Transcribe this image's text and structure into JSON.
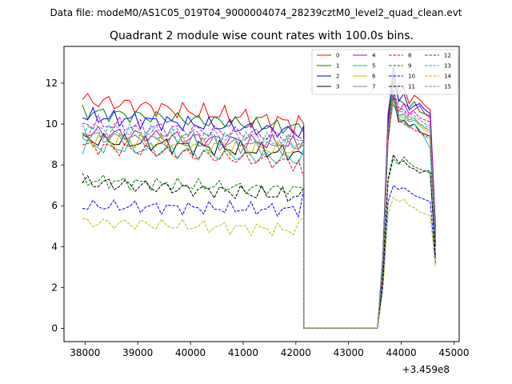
{
  "chart_data": {
    "type": "line",
    "suptitle": "Data file: modeM0/AS1C05_019T04_9000004074_28239cztM0_level2_quad_clean.evt",
    "title": "Quadrant 2 module wise count rates with 100.0s bins.",
    "xlabel": "",
    "ylabel": "",
    "x_offset_label": "+3.459e8",
    "xlim": [
      37600,
      45100
    ],
    "ylim": [
      -0.65,
      13.8
    ],
    "x_ticks": [
      38000,
      39000,
      40000,
      41000,
      42000,
      43000,
      44000,
      45000
    ],
    "y_ticks": [
      0,
      2,
      4,
      6,
      8,
      10,
      12
    ],
    "x_tick_labels": [
      "38000",
      "39000",
      "40000",
      "41000",
      "42000",
      "43000",
      "44000",
      "45000"
    ],
    "y_tick_labels": [
      "0",
      "2",
      "4",
      "6",
      "8",
      "10",
      "12"
    ],
    "grid": false,
    "legend_position": "top-right",
    "bin_width": 100,
    "segment1": {
      "x_start": 37950,
      "n": 43
    },
    "gap": [
      42250,
      43550
    ],
    "segment2": {
      "x_start": 43650,
      "n": 11
    },
    "series": [
      {
        "name": "0",
        "color": "#ff0000",
        "dash": "solid",
        "base1": 10.6,
        "tilt": 1.2,
        "amp": 0.35,
        "last1": 10.0,
        "s2": [
          3.5,
          10.5,
          12.4,
          11.5,
          11.8,
          11.0,
          11.4,
          11.2,
          10.9,
          10.7,
          5.0
        ]
      },
      {
        "name": "1",
        "color": "#008000",
        "dash": "solid",
        "base1": 10.2,
        "tilt": 0.8,
        "amp": 0.3,
        "last1": 9.6,
        "s2": [
          3.4,
          10.0,
          12.1,
          11.2,
          11.0,
          10.8,
          11.1,
          10.6,
          10.5,
          10.4,
          4.6
        ]
      },
      {
        "name": "2",
        "color": "#0000ff",
        "dash": "solid",
        "base1": 10.0,
        "tilt": 0.8,
        "amp": 0.3,
        "last1": 9.9,
        "s2": [
          3.3,
          10.2,
          12.8,
          11.1,
          11.5,
          10.7,
          10.9,
          11.0,
          10.7,
          10.5,
          4.9
        ]
      },
      {
        "name": "3",
        "color": "#000000",
        "dash": "solid",
        "base1": 8.9,
        "tilt": 0.7,
        "amp": 0.3,
        "last1": 8.5,
        "s2": [
          3.0,
          9.2,
          11.3,
          10.1,
          10.2,
          9.9,
          10.0,
          9.6,
          9.5,
          9.4,
          4.2
        ]
      },
      {
        "name": "4",
        "color": "#c000c0",
        "dash": "solid",
        "base1": 9.3,
        "tilt": 0.6,
        "amp": 0.3,
        "last1": 9.2,
        "s2": [
          3.2,
          9.8,
          11.6,
          10.6,
          11.0,
          10.5,
          10.7,
          10.9,
          10.5,
          10.3,
          4.8
        ]
      },
      {
        "name": "5",
        "color": "#00bfbf",
        "dash": "solid",
        "base1": 8.6,
        "tilt": 0.7,
        "amp": 0.3,
        "last1": 8.8,
        "s2": [
          3.0,
          9.5,
          11.0,
          10.3,
          10.1,
          9.8,
          10.0,
          9.7,
          9.3,
          8.8,
          4.0
        ]
      },
      {
        "name": "6",
        "color": "#bfbf00",
        "dash": "solid",
        "base1": 9.0,
        "tilt": 0.6,
        "amp": 0.3,
        "last1": 8.9,
        "s2": [
          3.1,
          9.4,
          11.2,
          10.4,
          10.3,
          10.1,
          10.2,
          9.9,
          9.7,
          9.6,
          4.3
        ]
      },
      {
        "name": "7",
        "color": "#808080",
        "dash": "solid",
        "base1": 9.1,
        "tilt": 0.6,
        "amp": 0.3,
        "last1": 9.0,
        "s2": [
          3.1,
          9.6,
          11.4,
          10.4,
          10.5,
          10.2,
          10.3,
          10.0,
          9.8,
          9.7,
          4.4
        ]
      },
      {
        "name": "8",
        "color": "#ff0000",
        "dash": "dashed",
        "base1": 8.5,
        "tilt": 0.9,
        "amp": 0.3,
        "last1": 7.4,
        "s2": [
          2.9,
          9.3,
          11.5,
          10.2,
          10.0,
          9.9,
          9.7,
          9.6,
          9.4,
          9.3,
          4.0
        ]
      },
      {
        "name": "9",
        "color": "#008000",
        "dash": "dashed",
        "base1": 7.0,
        "tilt": 0.5,
        "amp": 0.25,
        "last1": 6.9,
        "s2": [
          2.4,
          7.2,
          8.3,
          8.0,
          8.4,
          8.1,
          7.9,
          7.8,
          7.7,
          7.6,
          3.4
        ]
      },
      {
        "name": "10",
        "color": "#0000ff",
        "dash": "dashed",
        "base1": 5.9,
        "tilt": 0.2,
        "amp": 0.25,
        "last1": 6.8,
        "s2": [
          2.0,
          6.2,
          7.0,
          6.8,
          6.9,
          6.7,
          6.5,
          6.4,
          6.3,
          6.2,
          3.2
        ]
      },
      {
        "name": "11",
        "color": "#000000",
        "dash": "dashed",
        "base1": 6.8,
        "tilt": 0.7,
        "amp": 0.3,
        "last1": 6.9,
        "s2": [
          2.4,
          7.3,
          8.5,
          8.1,
          8.2,
          7.9,
          7.8,
          7.6,
          7.7,
          7.7,
          3.5
        ]
      },
      {
        "name": "12",
        "color": "#c000c0",
        "dash": "dashed",
        "base1": 9.7,
        "tilt": 0.7,
        "amp": 0.3,
        "last1": 9.3,
        "s2": [
          3.2,
          10.0,
          11.7,
          10.8,
          10.7,
          10.4,
          10.6,
          10.3,
          10.2,
          10.1,
          4.5
        ]
      },
      {
        "name": "13",
        "color": "#00bfbf",
        "dash": "dashed",
        "base1": 9.4,
        "tilt": 0.6,
        "amp": 0.3,
        "last1": 9.1,
        "s2": [
          3.1,
          9.8,
          11.6,
          10.5,
          10.4,
          10.1,
          10.2,
          10.0,
          9.9,
          9.8,
          4.3
        ]
      },
      {
        "name": "14",
        "color": "#bfbf00",
        "dash": "dashed",
        "base1": 5.0,
        "tilt": 0.4,
        "amp": 0.25,
        "last1": 5.5,
        "s2": [
          1.8,
          5.6,
          6.4,
          6.2,
          6.3,
          6.0,
          5.9,
          5.7,
          5.6,
          5.5,
          3.0
        ]
      },
      {
        "name": "15",
        "color": "#808080",
        "dash": "dashed",
        "base1": 9.5,
        "tilt": 0.6,
        "amp": 0.3,
        "last1": 9.2,
        "s2": [
          3.1,
          9.7,
          11.5,
          10.6,
          10.6,
          10.3,
          10.4,
          10.2,
          10.0,
          9.9,
          4.4
        ]
      }
    ]
  }
}
